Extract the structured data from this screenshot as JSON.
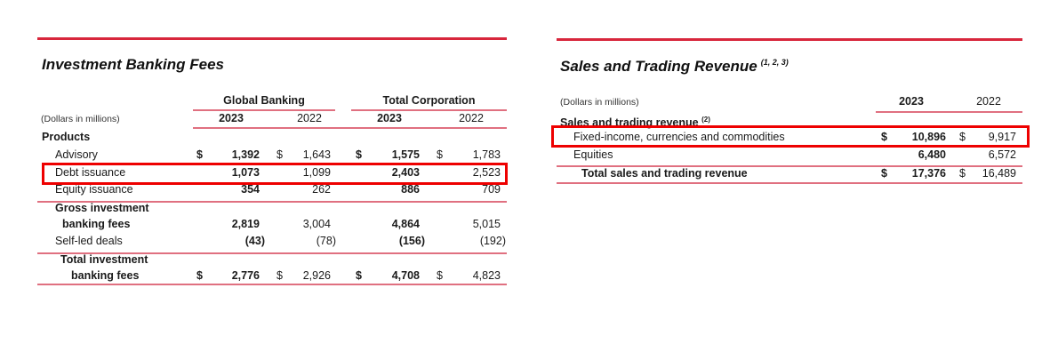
{
  "ib": {
    "title": "Investment Banking Fees",
    "units": "(Dollars in millions)",
    "groups": [
      "Global Banking",
      "Total Corporation"
    ],
    "years": [
      "2023",
      "2022",
      "2023",
      "2022"
    ],
    "section": "Products",
    "rows": [
      {
        "label": "Advisory",
        "dollar": true,
        "values": [
          "1,392",
          "1,643",
          "1,575",
          "1,783"
        ]
      },
      {
        "label": "Debt issuance",
        "dollar": false,
        "values": [
          "1,073",
          "1,099",
          "2,403",
          "2,523"
        ],
        "highlighted": true
      },
      {
        "label": "Equity issuance",
        "dollar": false,
        "values": [
          "354",
          "262",
          "886",
          "709"
        ]
      },
      {
        "label": "Gross investment",
        "label2": "banking fees",
        "dollar": false,
        "values": [
          "2,819",
          "3,004",
          "4,864",
          "5,015"
        ],
        "bold_label": true
      },
      {
        "label": "Self-led deals",
        "dollar": false,
        "values": [
          "(43)",
          "(78)",
          "(156)",
          "(192)"
        ]
      },
      {
        "label": "Total investment",
        "label2": "banking fees",
        "dollar": true,
        "values": [
          "2,776",
          "2,926",
          "4,708",
          "4,823"
        ],
        "bold_label": true
      }
    ]
  },
  "st": {
    "title": "Sales and Trading Revenue",
    "title_note": "(1, 2, 3)",
    "units": "(Dollars in millions)",
    "years": [
      "2023",
      "2022"
    ],
    "section": "Sales and trading revenue",
    "section_note": "(2)",
    "rows": [
      {
        "label": "Fixed-income, currencies and commodities",
        "dollar": true,
        "values": [
          "10,896",
          "9,917"
        ],
        "highlighted": true
      },
      {
        "label": "Equities",
        "dollar": false,
        "values": [
          "6,480",
          "6,572"
        ]
      },
      {
        "label": "Total sales and trading revenue",
        "dollar": true,
        "values": [
          "17,376",
          "16,489"
        ],
        "bold_label": true
      }
    ]
  },
  "colors": {
    "rule": "#d8263c",
    "highlight": "#ee0000"
  },
  "$": "$"
}
